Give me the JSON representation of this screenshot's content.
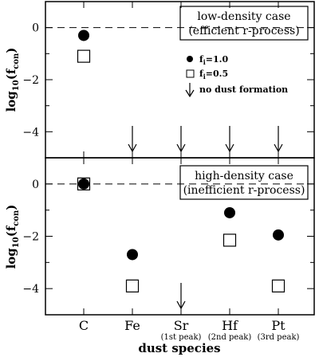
{
  "chart_data": [
    {
      "type": "scatter",
      "panel": "top",
      "annotation": [
        "low-density case",
        "(efficient r-process)"
      ],
      "ylabel_main": "log",
      "ylabel_sub10": "10",
      "ylabel_f": "(f",
      "ylabel_sub": "con",
      "ylabel_close": ")",
      "ylim": [
        -5,
        1
      ],
      "yticks": [
        0,
        -2,
        -4
      ],
      "ytick_labels": [
        "0",
        "−2",
        "−4"
      ],
      "reference_line_y": 0,
      "series": [
        {
          "name": "f_i=1.0",
          "marker": "filled-circle",
          "points": [
            {
              "category": "C",
              "y": -0.3
            }
          ]
        },
        {
          "name": "f_i=0.5",
          "marker": "open-square",
          "points": [
            {
              "category": "C",
              "y": -1.1
            }
          ]
        }
      ],
      "no_dust_formation": [
        "Fe",
        "Sr",
        "Hf",
        "Pt"
      ],
      "legend": {
        "placement": "right",
        "entries": [
          {
            "symbol": "filled-circle",
            "f": "f",
            "sub": "i",
            "value": "=1.0"
          },
          {
            "symbol": "open-square",
            "f": "f",
            "sub": "i",
            "value": "=0.5"
          },
          {
            "symbol": "down-arrow",
            "label": "no dust formation"
          }
        ]
      }
    },
    {
      "type": "scatter",
      "panel": "bottom",
      "annotation": [
        "high-density case",
        "(inefficient r-process)"
      ],
      "ylabel_main": "log",
      "ylabel_sub10": "10",
      "ylabel_f": "(f",
      "ylabel_sub": "con",
      "ylabel_close": ")",
      "ylim": [
        -5,
        1
      ],
      "yticks": [
        0,
        -2,
        -4
      ],
      "ytick_labels": [
        "0",
        "−2",
        "−4"
      ],
      "reference_line_y": 0,
      "series": [
        {
          "name": "f_i=1.0",
          "marker": "filled-circle",
          "points": [
            {
              "category": "C",
              "y": 0.0
            },
            {
              "category": "Fe",
              "y": -2.7
            },
            {
              "category": "Hf",
              "y": -1.1
            },
            {
              "category": "Pt",
              "y": -1.95
            }
          ]
        },
        {
          "name": "f_i=0.5",
          "marker": "open-square",
          "points": [
            {
              "category": "C",
              "y": 0.0
            },
            {
              "category": "Fe",
              "y": -3.9
            },
            {
              "category": "Hf",
              "y": -2.15
            },
            {
              "category": "Pt",
              "y": -3.9
            }
          ]
        }
      ],
      "no_dust_formation": [
        "Sr"
      ]
    }
  ],
  "x_axis": {
    "label": "dust species",
    "categories": [
      {
        "name": "C",
        "sub": ""
      },
      {
        "name": "Fe",
        "sub": ""
      },
      {
        "name": "Sr",
        "sub": "(1st peak)"
      },
      {
        "name": "Hf",
        "sub": "(2nd peak)"
      },
      {
        "name": "Pt",
        "sub": "(3rd peak)"
      }
    ]
  }
}
